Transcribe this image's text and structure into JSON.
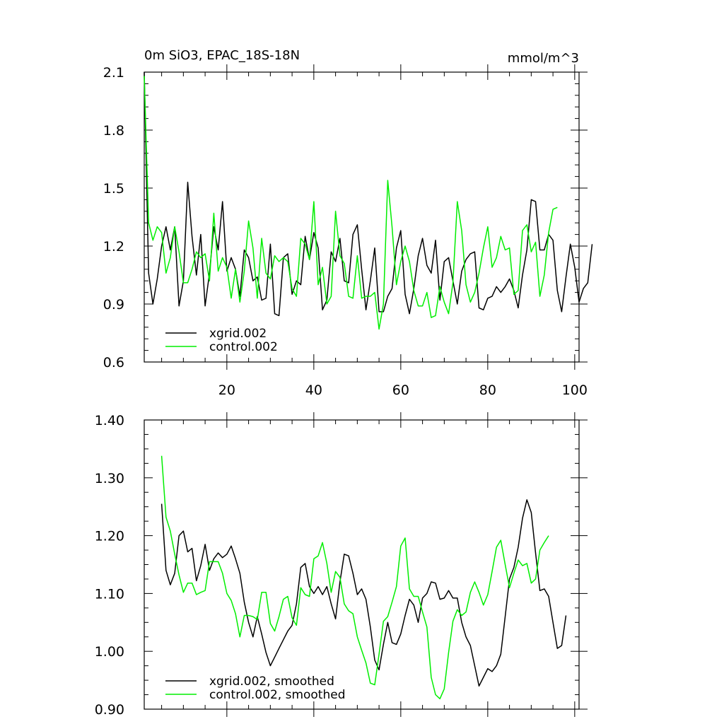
{
  "chart_data": [
    {
      "type": "line",
      "title": "0m SiO3, EPAC_18S-18N",
      "units": "mmol/m^3",
      "xlim": [
        1,
        101
      ],
      "ylim": [
        0.6,
        2.1
      ],
      "xticks": [
        20,
        40,
        60,
        80,
        100
      ],
      "xtick_labels": [
        "20",
        "40",
        "60",
        "80",
        "100"
      ],
      "yticks": [
        0.6,
        0.9,
        1.2,
        1.5,
        1.8,
        2.1
      ],
      "ytick_labels": [
        "0.6",
        "0.9",
        "1.2",
        "1.5",
        "1.8",
        "2.1"
      ],
      "legend_position": "bottom-left",
      "series": [
        {
          "name": "xgrid.002",
          "color": "#000000",
          "x_start": 1,
          "values": [
            2.1,
            1.06,
            0.9,
            1.03,
            1.2,
            1.3,
            1.18,
            1.3,
            0.89,
            1.02,
            1.53,
            1.25,
            1.05,
            1.26,
            0.89,
            1.06,
            1.3,
            1.18,
            1.43,
            1.07,
            1.14,
            1.08,
            0.94,
            1.18,
            1.14,
            1.02,
            1.04,
            0.92,
            0.93,
            1.21,
            0.85,
            0.84,
            1.14,
            1.16,
            0.95,
            1.02,
            1.0,
            1.25,
            1.13,
            1.27,
            1.19,
            0.87,
            0.92,
            1.17,
            1.12,
            1.24,
            1.02,
            1.01,
            1.26,
            1.31,
            1.08,
            0.87,
            1.02,
            1.19,
            0.86,
            0.86,
            0.94,
            0.98,
            1.19,
            1.28,
            0.95,
            0.85,
            0.98,
            1.15,
            1.24,
            1.1,
            1.06,
            1.23,
            0.92,
            1.12,
            1.14,
            1.02,
            0.9,
            1.07,
            1.13,
            1.16,
            1.17,
            0.88,
            0.87,
            0.93,
            0.94,
            0.99,
            0.96,
            0.99,
            1.03,
            0.97,
            0.88,
            1.05,
            1.18,
            1.44,
            1.43,
            1.18,
            1.18,
            1.26,
            1.23,
            0.97,
            0.86,
            1.04,
            1.21,
            1.09,
            0.91,
            0.98,
            1.01,
            1.21
          ]
        },
        {
          "name": "control.002",
          "color": "#00ee00",
          "x_start": 1,
          "values": [
            2.08,
            1.32,
            1.23,
            1.3,
            1.27,
            1.06,
            1.14,
            1.3,
            1.17,
            1.01,
            1.01,
            1.08,
            1.17,
            1.14,
            1.16,
            1.02,
            1.37,
            1.07,
            1.14,
            1.09,
            0.93,
            1.08,
            0.91,
            1.07,
            1.33,
            1.19,
            0.93,
            1.24,
            1.06,
            1.03,
            1.15,
            1.12,
            1.14,
            1.12,
            0.98,
            0.94,
            1.24,
            1.21,
            1.13,
            1.43,
            1.0,
            1.09,
            0.9,
            0.94,
            1.38,
            1.15,
            1.11,
            0.94,
            0.93,
            1.15,
            0.93,
            0.94,
            0.94,
            0.96,
            0.77,
            0.9,
            1.54,
            1.3,
            1.0,
            1.12,
            1.2,
            1.12,
            0.97,
            0.89,
            0.89,
            0.96,
            0.83,
            0.84,
            0.99,
            0.91,
            0.85,
            1.01,
            1.43,
            1.28,
            1.0,
            0.91,
            0.96,
            1.06,
            1.19,
            1.3,
            1.09,
            1.14,
            1.25,
            1.18,
            1.19,
            0.95,
            0.97,
            1.28,
            1.31,
            1.17,
            1.22,
            0.94,
            1.05,
            1.27,
            1.39,
            1.4
          ]
        }
      ]
    },
    {
      "type": "line",
      "xlim": [
        1,
        101
      ],
      "ylim": [
        0.9,
        1.4
      ],
      "yticks": [
        0.9,
        1.0,
        1.1,
        1.2,
        1.3,
        1.4
      ],
      "ytick_labels": [
        "0.90",
        "1.00",
        "1.10",
        "1.20",
        "1.30",
        "1.40"
      ],
      "legend_position": "bottom-left",
      "series": [
        {
          "name": "xgrid.002, smoothed",
          "color": "#000000",
          "x_start": 5,
          "values": [
            1.255,
            1.14,
            1.115,
            1.135,
            1.2,
            1.208,
            1.172,
            1.178,
            1.122,
            1.148,
            1.185,
            1.14,
            1.16,
            1.17,
            1.162,
            1.168,
            1.182,
            1.16,
            1.135,
            1.085,
            1.05,
            1.025,
            1.06,
            1.03,
            0.998,
            0.975,
            0.99,
            1.005,
            1.02,
            1.035,
            1.045,
            1.082,
            1.145,
            1.152,
            1.112,
            1.1,
            1.112,
            1.098,
            1.112,
            1.082,
            1.056,
            1.12,
            1.168,
            1.165,
            1.135,
            1.098,
            1.108,
            1.09,
            1.042,
            0.985,
            0.968,
            1.012,
            1.05,
            1.015,
            1.012,
            1.03,
            1.062,
            1.09,
            1.08,
            1.05,
            1.092,
            1.1,
            1.12,
            1.118,
            1.09,
            1.092,
            1.105,
            1.092,
            1.092,
            1.05,
            1.025,
            1.01,
            0.975,
            0.94,
            0.955,
            0.97,
            0.965,
            0.975,
            0.995,
            1.06,
            1.125,
            1.145,
            1.18,
            1.23,
            1.262,
            1.24,
            1.17,
            1.105,
            1.108,
            1.095,
            1.05,
            1.005,
            1.01,
            1.062
          ]
        },
        {
          "name": "control.002, smoothed",
          "color": "#00ee00",
          "x_start": 5,
          "values": [
            1.338,
            1.232,
            1.208,
            1.168,
            1.132,
            1.102,
            1.118,
            1.118,
            1.098,
            1.102,
            1.105,
            1.155,
            1.155,
            1.155,
            1.135,
            1.1,
            1.088,
            1.065,
            1.025,
            1.062,
            1.062,
            1.06,
            1.055,
            1.102,
            1.102,
            1.048,
            1.035,
            1.06,
            1.09,
            1.095,
            1.058,
            1.045,
            1.11,
            1.098,
            1.095,
            1.16,
            1.165,
            1.188,
            1.152,
            1.102,
            1.138,
            1.128,
            1.082,
            1.07,
            1.065,
            1.025,
            1.002,
            0.98,
            0.945,
            0.942,
            0.995,
            1.052,
            1.06,
            1.085,
            1.112,
            1.182,
            1.196,
            1.108,
            1.095,
            1.095,
            1.068,
            1.042,
            0.955,
            0.925,
            0.918,
            0.935,
            0.998,
            1.052,
            1.072,
            1.062,
            1.068,
            1.102,
            1.12,
            1.102,
            1.08,
            1.098,
            1.138,
            1.18,
            1.192,
            1.15,
            1.11,
            1.135,
            1.158,
            1.148,
            1.152,
            1.118,
            1.125,
            1.175,
            1.188,
            1.2
          ]
        }
      ]
    }
  ]
}
